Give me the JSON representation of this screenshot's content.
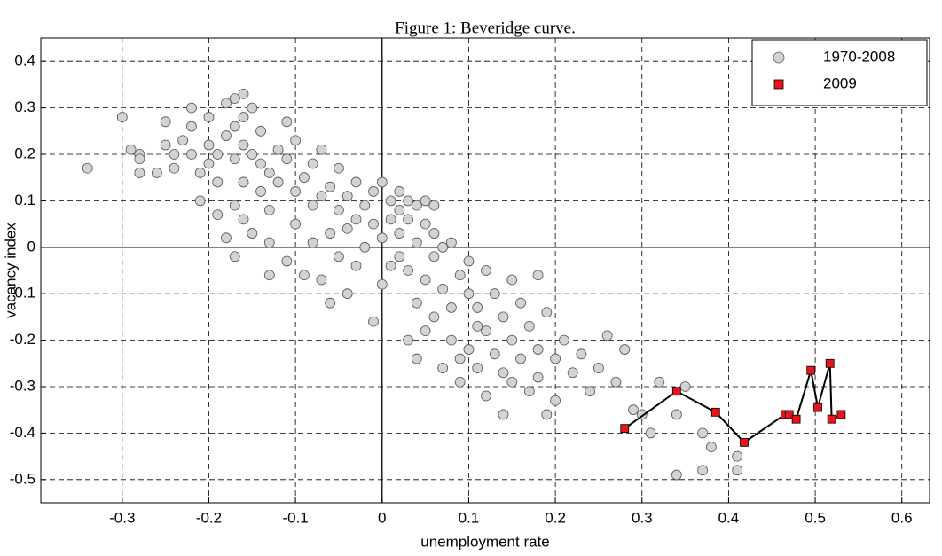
{
  "chart_data": {
    "type": "scatter",
    "title": "Figure 1: Beveridge curve.",
    "xlabel": "unemployment rate",
    "ylabel": "vacancy index",
    "xlim": [
      -0.394,
      0.632
    ],
    "ylim": [
      -0.55,
      0.45
    ],
    "xticks": [
      -0.3,
      -0.2,
      -0.1,
      0,
      0.1,
      0.2,
      0.3,
      0.4,
      0.5,
      0.6
    ],
    "yticks": [
      0.4,
      0.3,
      0.2,
      0.1,
      0,
      -0.1,
      -0.2,
      -0.3,
      -0.4,
      -0.5
    ],
    "grid": true,
    "legend": "upper right",
    "series": [
      {
        "name": "1970-2008",
        "color": "#d3d3d3",
        "marker": "circle",
        "line": false,
        "x": [
          -0.34,
          -0.3,
          -0.29,
          -0.28,
          -0.28,
          -0.28,
          -0.26,
          -0.25,
          -0.25,
          -0.24,
          -0.24,
          -0.23,
          -0.22,
          -0.22,
          -0.22,
          -0.21,
          -0.21,
          -0.2,
          -0.2,
          -0.2,
          -0.19,
          -0.19,
          -0.19,
          -0.18,
          -0.18,
          -0.18,
          -0.17,
          -0.17,
          -0.17,
          -0.17,
          -0.17,
          -0.16,
          -0.16,
          -0.16,
          -0.16,
          -0.16,
          -0.15,
          -0.15,
          -0.15,
          -0.14,
          -0.14,
          -0.14,
          -0.13,
          -0.13,
          -0.13,
          -0.13,
          -0.12,
          -0.12,
          -0.11,
          -0.11,
          -0.11,
          -0.1,
          -0.1,
          -0.1,
          -0.09,
          -0.09,
          -0.08,
          -0.08,
          -0.08,
          -0.07,
          -0.07,
          -0.07,
          -0.06,
          -0.06,
          -0.06,
          -0.05,
          -0.05,
          -0.05,
          -0.04,
          -0.04,
          -0.04,
          -0.03,
          -0.03,
          -0.03,
          -0.02,
          -0.02,
          -0.01,
          -0.01,
          -0.01,
          0,
          0,
          0,
          0.01,
          0.01,
          0.01,
          0.02,
          0.02,
          0.02,
          0.02,
          0.03,
          0.03,
          0.03,
          0.03,
          0.04,
          0.04,
          0.04,
          0.04,
          0.05,
          0.05,
          0.05,
          0.05,
          0.06,
          0.06,
          0.06,
          0.06,
          0.07,
          0.07,
          0.07,
          0.08,
          0.08,
          0.08,
          0.09,
          0.09,
          0.1,
          0.1,
          0.1,
          0.11,
          0.11,
          0.12,
          0.12,
          0.12,
          0.13,
          0.13,
          0.14,
          0.14,
          0.15,
          0.15,
          0.15,
          0.16,
          0.16,
          0.17,
          0.18,
          0.18,
          0.18,
          0.19,
          0.2,
          0.2,
          0.21,
          0.22,
          0.23,
          0.24,
          0.25,
          0.26,
          0.27,
          0.29,
          0.31,
          0.32,
          0.34,
          0.34,
          0.35,
          0.37,
          0.37,
          0.38,
          0.41,
          0.41,
          0.3,
          0.28,
          0.19,
          0.11,
          0.09,
          0.14,
          0.17
        ],
        "values": [
          0.17,
          0.28,
          0.21,
          0.2,
          0.16,
          0.19,
          0.16,
          0.27,
          0.22,
          0.2,
          0.17,
          0.23,
          0.3,
          0.26,
          0.2,
          0.16,
          0.1,
          0.28,
          0.22,
          0.18,
          0.07,
          0.14,
          0.2,
          0.31,
          0.24,
          0.02,
          0.32,
          0.26,
          0.19,
          0.09,
          -0.02,
          0.33,
          0.28,
          0.22,
          0.14,
          0.06,
          0.3,
          0.2,
          0.03,
          0.25,
          0.18,
          0.12,
          0.16,
          0.08,
          0.01,
          -0.06,
          0.21,
          0.14,
          0.27,
          0.19,
          -0.03,
          0.23,
          0.12,
          0.05,
          0.15,
          -0.06,
          0.18,
          0.09,
          0.01,
          0.21,
          0.11,
          -0.07,
          0.13,
          0.03,
          -0.12,
          0.17,
          0.08,
          -0.02,
          0.11,
          0.04,
          -0.1,
          0.14,
          0.06,
          -0.04,
          0.09,
          0,
          0.12,
          0.05,
          -0.16,
          0.14,
          0.02,
          -0.08,
          0.1,
          0.06,
          -0.04,
          0.12,
          0.08,
          0.03,
          -0.02,
          0.1,
          0.06,
          -0.05,
          -0.2,
          0.09,
          0.01,
          -0.12,
          -0.24,
          0.1,
          0.05,
          -0.07,
          -0.18,
          0.09,
          0.03,
          -0.02,
          -0.15,
          0,
          -0.09,
          -0.26,
          0.01,
          -0.13,
          -0.2,
          -0.06,
          -0.29,
          -0.1,
          -0.22,
          -0.03,
          -0.13,
          -0.26,
          -0.05,
          -0.18,
          -0.32,
          -0.1,
          -0.23,
          -0.15,
          -0.36,
          -0.07,
          -0.2,
          -0.29,
          -0.12,
          -0.24,
          -0.17,
          -0.06,
          -0.22,
          -0.28,
          -0.14,
          -0.24,
          -0.33,
          -0.2,
          -0.27,
          -0.23,
          -0.31,
          -0.26,
          -0.19,
          -0.29,
          -0.35,
          -0.4,
          -0.29,
          -0.36,
          -0.49,
          -0.3,
          -0.4,
          -0.48,
          -0.43,
          -0.45,
          -0.48,
          -0.36,
          -0.22,
          -0.36,
          -0.17,
          -0.24,
          -0.27,
          -0.31
        ]
      },
      {
        "name": "2009",
        "color": "#e8131b",
        "marker": "square",
        "line": true,
        "x": [
          0.28,
          0.34,
          0.385,
          0.418,
          0.465,
          0.47,
          0.478,
          0.495,
          0.503,
          0.517,
          0.519,
          0.53
        ],
        "values": [
          -0.39,
          -0.31,
          -0.355,
          -0.42,
          -0.36,
          -0.36,
          -0.37,
          -0.265,
          -0.345,
          -0.25,
          -0.37,
          -0.36
        ]
      }
    ]
  }
}
